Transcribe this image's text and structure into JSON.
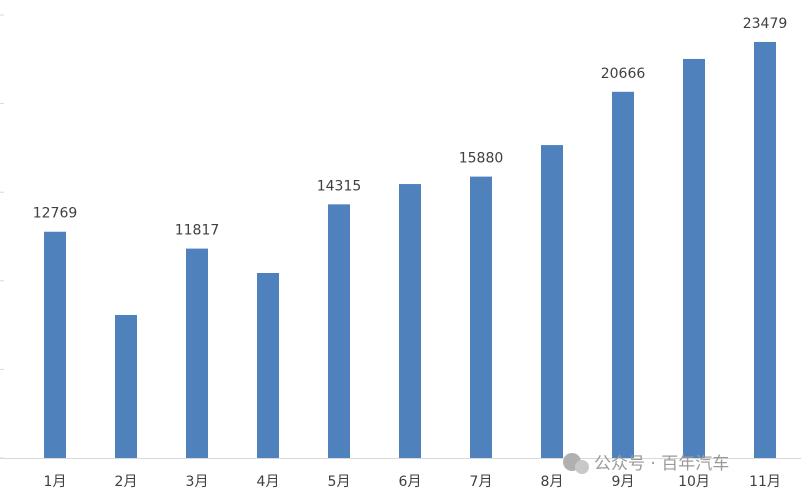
{
  "chart_data": {
    "type": "bar",
    "categories": [
      "1月",
      "2月",
      "3月",
      "4月",
      "5月",
      "6月",
      "7月",
      "8月",
      "9月",
      "10月",
      "11月"
    ],
    "values": [
      12769,
      8070,
      11817,
      10440,
      14315,
      15460,
      15880,
      17660,
      20666,
      22520,
      23479
    ],
    "value_labels": [
      "12769",
      null,
      "11817",
      null,
      "14315",
      null,
      "15880",
      null,
      "20666",
      null,
      "23479"
    ],
    "color": "#4f81bd",
    "ylim": [
      0,
      25000
    ],
    "yticks": [
      0,
      5000,
      10000,
      15000,
      20000,
      25000
    ],
    "watermark": "公众号 · 百年汽车"
  }
}
